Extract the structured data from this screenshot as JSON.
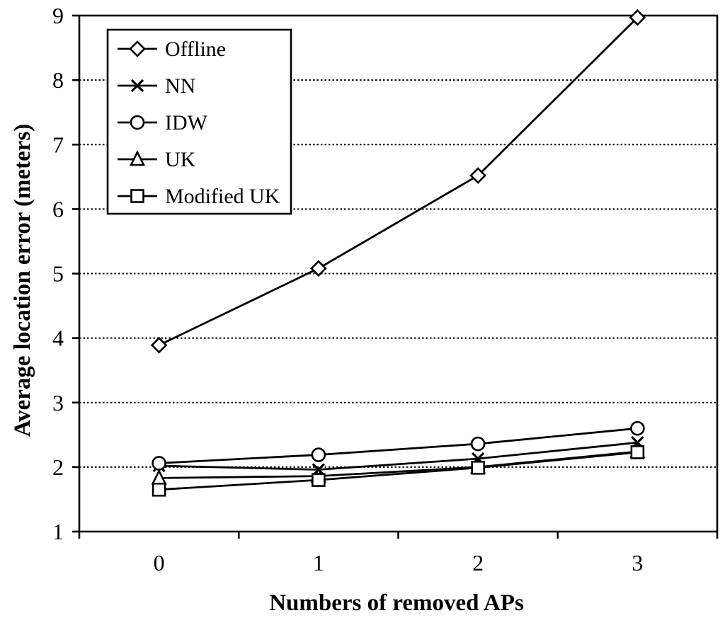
{
  "page": {
    "background": "#ffffff",
    "foreground": "#000000"
  },
  "chart_data": {
    "type": "line",
    "title": "",
    "xlabel": "Numbers of removed APs",
    "ylabel": "Average location error (meters)",
    "categories": [
      "0",
      "1",
      "2",
      "3"
    ],
    "yticks": [
      1,
      2,
      3,
      4,
      5,
      6,
      7,
      8,
      9
    ],
    "ylim": [
      1,
      9
    ],
    "grid": "horizontal-dotted-major",
    "legend_position": "top-left-inside",
    "line_color": "#000000",
    "marker_fill": "#ffffff",
    "series": [
      {
        "name": "Offline",
        "marker": "diamond",
        "values": [
          3.89,
          5.08,
          6.52,
          8.97
        ]
      },
      {
        "name": "NN",
        "marker": "x",
        "values": [
          2.02,
          1.96,
          2.13,
          2.38
        ]
      },
      {
        "name": "IDW",
        "marker": "circle",
        "values": [
          2.06,
          2.19,
          2.36,
          2.6
        ]
      },
      {
        "name": "UK",
        "marker": "triangle",
        "values": [
          1.83,
          1.86,
          2.0,
          2.24
        ]
      },
      {
        "name": "Modified UK",
        "marker": "square",
        "values": [
          1.65,
          1.8,
          1.99,
          2.23
        ]
      }
    ]
  }
}
